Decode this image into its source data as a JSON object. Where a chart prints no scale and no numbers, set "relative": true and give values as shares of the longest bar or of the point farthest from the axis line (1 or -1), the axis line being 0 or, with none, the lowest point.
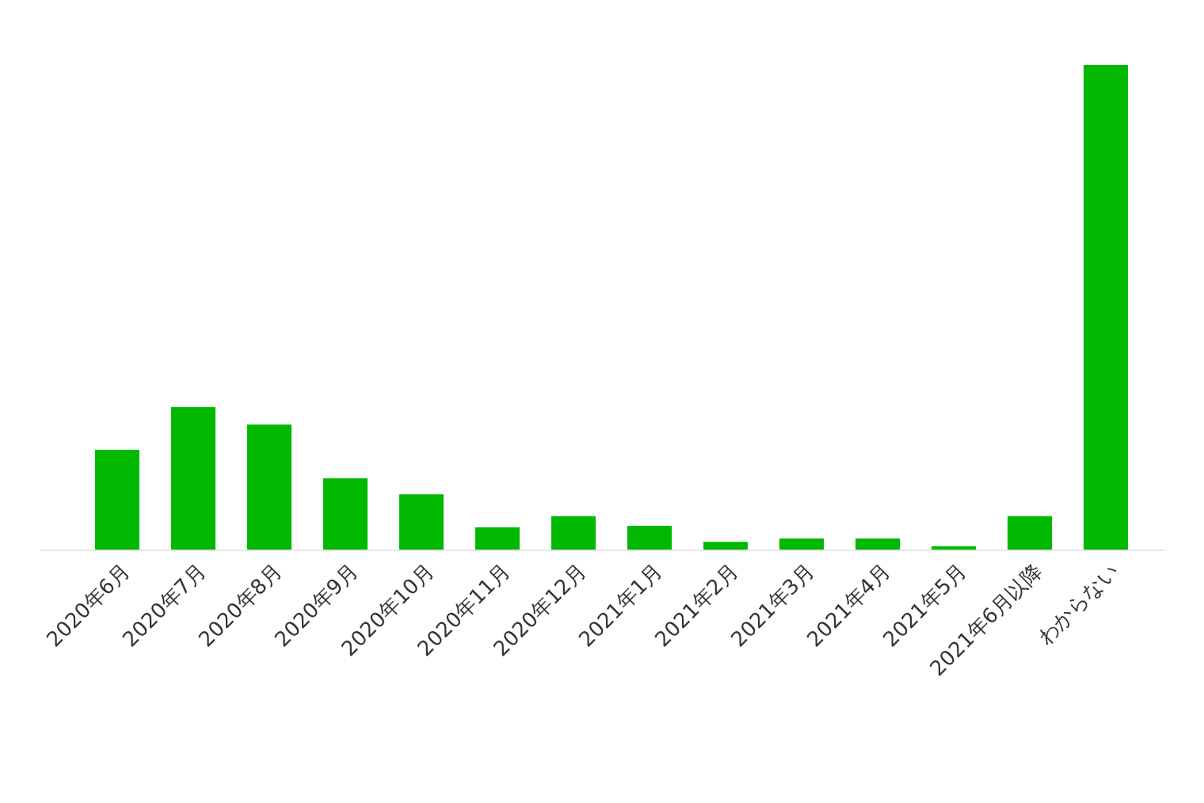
{
  "chart_data": {
    "type": "bar",
    "relative": true,
    "color": "#00b900",
    "categories": [
      "2020年6月",
      "2020年7月",
      "2020年8月",
      "2020年9月",
      "2020年10月",
      "2020年11月",
      "2020年12月",
      "2021年1月",
      "2021年2月",
      "2021年3月",
      "2021年4月",
      "2021年5月",
      "2021年6月以降",
      "わからない"
    ],
    "values": [
      0.206,
      0.294,
      0.258,
      0.147,
      0.114,
      0.046,
      0.069,
      0.049,
      0.016,
      0.023,
      0.023,
      0.007,
      0.069,
      1
    ]
  }
}
